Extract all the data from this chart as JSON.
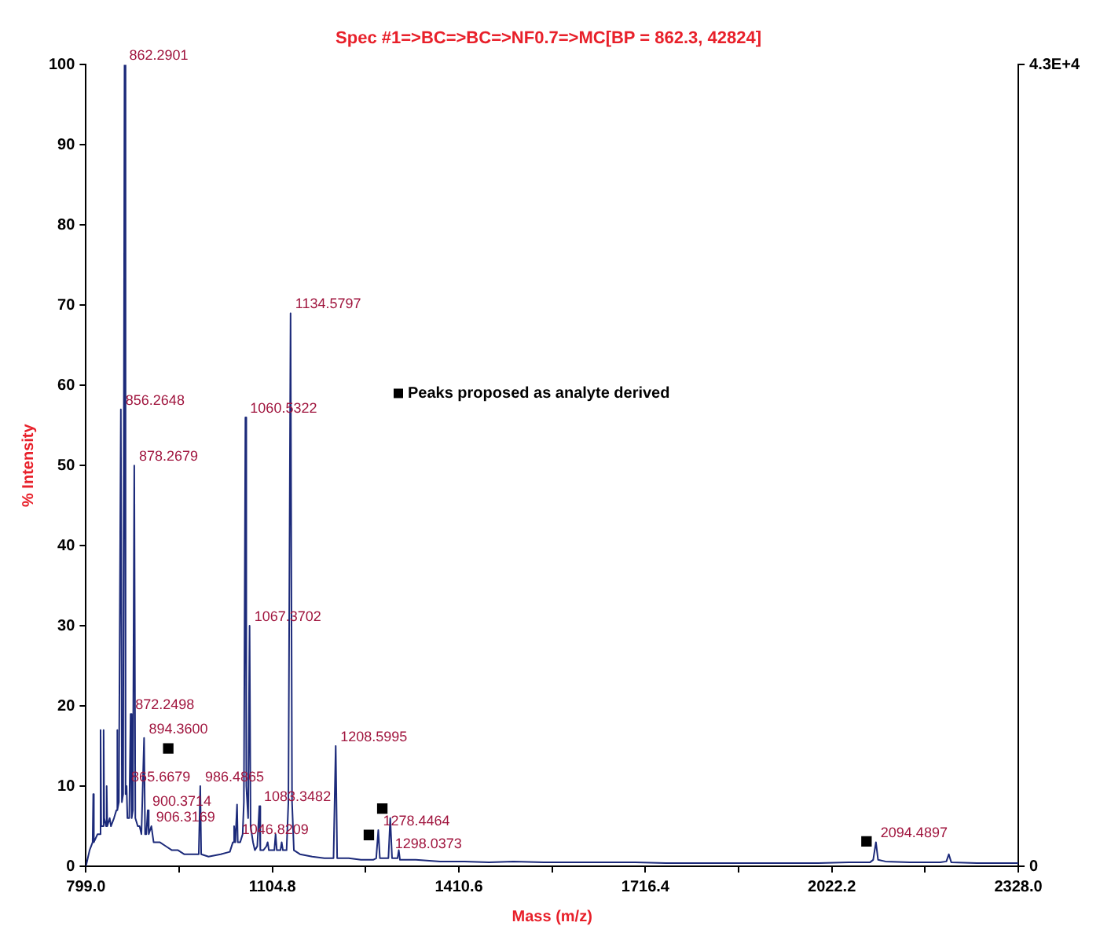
{
  "chart_data": {
    "type": "line",
    "title": "Spec #1=>BC=>BC=>NF0.7=>MC[BP = 862.3, 42824]",
    "xlabel": "Mass (m/z)",
    "ylabel": "% Intensity",
    "xlim": [
      799,
      2328
    ],
    "xticks": [
      {
        "value": 799,
        "label": "799.0"
      },
      {
        "value": 951.9,
        "label": null
      },
      {
        "value": 1104.8,
        "label": "1104.8"
      },
      {
        "value": 1257.7,
        "label": null
      },
      {
        "value": 1410.6,
        "label": "1410.6"
      },
      {
        "value": 1563.5,
        "label": null
      },
      {
        "value": 1716.4,
        "label": "1716.4"
      },
      {
        "value": 1869.3,
        "label": null
      },
      {
        "value": 2022.2,
        "label": "2022.2"
      },
      {
        "value": 2175.1,
        "label": null
      },
      {
        "value": 2328,
        "label": "2328.0"
      }
    ],
    "ylim": [
      0,
      100
    ],
    "yticks": [
      0,
      10,
      20,
      30,
      40,
      50,
      60,
      70,
      80,
      90,
      100
    ],
    "y2lim": [
      0,
      43000
    ],
    "y2ticks": [
      0,
      {
        "value": 43000,
        "label": "4.3E+4"
      }
    ],
    "grid": false,
    "legend": "center",
    "marker": "none",
    "line_style": "solid",
    "series": [
      {
        "color": "#1c2a7a",
        "x": [
          799,
          805,
          810,
          811,
          812,
          818,
          822,
          823,
          824,
          827,
          828,
          829,
          832,
          833,
          834,
          838,
          840,
          845,
          849,
          850,
          851,
          853,
          856.26,
          858,
          860,
          862.29,
          864,
          865.67,
          867,
          870,
          872.25,
          874,
          876,
          878.27,
          880,
          884,
          887,
          890,
          894.36,
          896,
          898,
          900.37,
          902,
          906.32,
          910,
          920,
          930,
          940,
          950,
          960,
          975,
          984,
          986.49,
          988,
          1000,
          1020,
          1035,
          1040,
          1042,
          1044,
          1046.82,
          1048,
          1052,
          1056,
          1058,
          1060.53,
          1062,
          1065,
          1067.37,
          1069,
          1073,
          1076,
          1080,
          1083.35,
          1085,
          1090,
          1095,
          1097,
          1099,
          1108,
          1110,
          1112,
          1118,
          1120,
          1122,
          1128,
          1131,
          1134.58,
          1137,
          1140,
          1150,
          1170,
          1190,
          1205,
          1208.6,
          1211,
          1230,
          1250,
          1270,
          1275,
          1278.45,
          1281,
          1290,
          1295,
          1298.04,
          1301,
          1310,
          1312,
          1314,
          1340,
          1380,
          1420,
          1460,
          1500,
          1550,
          1600,
          1650,
          1700,
          1750,
          1800,
          1850,
          1900,
          1950,
          2000,
          2050,
          2085,
          2090,
          2094.49,
          2098,
          2110,
          2150,
          2200,
          2210,
          2214,
          2218,
          2260,
          2300,
          2328
        ],
        "values": [
          0,
          2,
          3,
          9,
          3,
          4,
          4,
          17,
          5,
          5,
          17,
          6,
          5,
          10,
          5,
          6,
          5,
          6,
          7,
          17,
          7,
          8,
          57,
          8,
          9,
          100,
          9,
          10,
          6,
          6,
          19,
          6,
          7,
          50,
          6,
          5,
          5,
          4,
          16,
          4,
          4,
          7,
          4,
          5,
          3,
          3,
          2.5,
          2,
          2,
          1.5,
          1.5,
          1.5,
          10,
          1.5,
          1.2,
          1.5,
          1.8,
          3,
          5,
          3,
          7.7,
          3,
          3,
          4,
          8,
          56,
          10,
          6,
          30,
          5,
          3,
          2,
          2.5,
          7.5,
          2,
          2,
          2.5,
          3,
          2,
          2,
          4,
          2,
          2,
          3,
          2,
          2,
          8,
          69,
          8,
          2,
          1.5,
          1.2,
          1,
          1,
          15,
          1,
          1,
          0.8,
          0.8,
          1,
          4.5,
          1,
          1,
          1,
          6,
          1,
          1,
          2,
          0.8,
          0.8,
          0.6,
          0.6,
          0.5,
          0.6,
          0.5,
          0.5,
          0.5,
          0.5,
          0.4,
          0.4,
          0.4,
          0.4,
          0.4,
          0.4,
          0.5,
          0.5,
          0.8,
          3,
          0.8,
          0.6,
          0.5,
          0.5,
          0.6,
          1.5,
          0.5,
          0.4,
          0.4,
          0.4
        ]
      },
      {
        "type": "scatter",
        "name": "Peaks proposed as analyte derived",
        "color": "#000000",
        "marker": "square",
        "x": [
          934,
          1263,
          1285,
          2079
        ],
        "values": [
          14.7,
          3.9,
          7.2,
          3.1
        ]
      }
    ],
    "annotations": [
      {
        "text": "862.2901",
        "x": 862.29,
        "y": 100
      },
      {
        "text": "856.2648",
        "x": 856.26,
        "y": 57
      },
      {
        "text": "878.2679",
        "x": 878.27,
        "y": 50
      },
      {
        "text": "872.2498",
        "x": 872.25,
        "y": 19
      },
      {
        "text": "894.3600",
        "x": 894.36,
        "y": 16
      },
      {
        "text": "906.3169",
        "x": 906.32,
        "y": 5
      },
      {
        "text": "865.6679",
        "x": 865.67,
        "y": 10
      },
      {
        "text": "900.3714",
        "x": 900.37,
        "y": 7
      },
      {
        "text": "986.4865",
        "x": 986.49,
        "y": 10
      },
      {
        "text": "1060.5322",
        "x": 1060.53,
        "y": 56
      },
      {
        "text": "1067.3702",
        "x": 1067.37,
        "y": 30
      },
      {
        "text": "1083.3482",
        "x": 1083.35,
        "y": 7.5
      },
      {
        "text": "1046.8209",
        "x": 1046.82,
        "y": 7.7
      },
      {
        "text": "1134.5797",
        "x": 1134.58,
        "y": 69
      },
      {
        "text": "1208.5995",
        "x": 1208.6,
        "y": 15
      },
      {
        "text": "1278.4464",
        "x": 1278.45,
        "y": 4.5
      },
      {
        "text": "1298.0373",
        "x": 1298.04,
        "y": 6
      },
      {
        "text": "2094.4897",
        "x": 2094.49,
        "y": 3
      }
    ]
  }
}
